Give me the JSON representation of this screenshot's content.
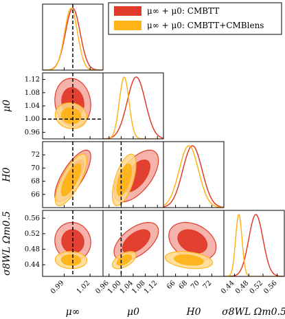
{
  "chart_data": {
    "type": "corner",
    "parameters": [
      {
        "id": "mu_inf",
        "label": "μ∞",
        "range": [
          0.965,
          1.035
        ],
        "ticks": [
          0.99,
          1.02
        ],
        "tick_labels": [
          "0.99",
          "1.02"
        ],
        "fiducial": 1.0
      },
      {
        "id": "mu0",
        "label": "μ0",
        "range": [
          0.94,
          1.14
        ],
        "ticks": [
          0.96,
          1.0,
          1.04,
          1.08,
          1.12
        ],
        "tick_labels": [
          "0.96",
          "1.00",
          "1.04",
          "1.08",
          "1.12"
        ],
        "fiducial": 1.0
      },
      {
        "id": "H0",
        "label": "H0",
        "range": [
          64,
          74
        ],
        "ticks": [
          66,
          68,
          70,
          72
        ],
        "tick_labels": [
          "66",
          "68",
          "70",
          "72"
        ]
      },
      {
        "id": "s8om",
        "label": "σ8WL Ωm0.5",
        "range": [
          0.41,
          0.58
        ],
        "ticks": [
          0.44,
          0.48,
          0.52,
          0.56
        ],
        "tick_labels": [
          "0.44",
          "0.48",
          "0.52",
          "0.56"
        ]
      }
    ],
    "series": [
      {
        "name": "μ∞ + μ0: CMBTT",
        "color": "#e03a2a",
        "fill_outer": "#f3a69d",
        "fill_inner": "#e03a2a",
        "mean": [
          1.0,
          1.05,
          68.8,
          0.5
        ],
        "sigma": [
          0.0085,
          0.03,
          1.6,
          0.02
        ]
      },
      {
        "name": "μ∞ + μ0: CMBTT+CMBlens",
        "color": "#ffb319",
        "fill_outer": "#ffd98c",
        "fill_inner": "#ffb319",
        "mean": [
          0.998,
          1.01,
          68.2,
          0.452
        ],
        "sigma": [
          0.0075,
          0.016,
          1.6,
          0.009
        ]
      }
    ],
    "axis_labels": {
      "x": [
        "μ∞",
        "μ0",
        "H0",
        "σ8WL Ωm0.5"
      ],
      "y": [
        "μ0",
        "H0",
        "σ8WL Ωm0.5"
      ]
    },
    "legend_position": "top-right",
    "reference_lines": {
      "mu_inf": 1.0,
      "mu0": 1.0
    }
  },
  "legend": {
    "entry_1": "μ∞ + μ0:  CMBTT",
    "entry_2": "μ∞ + μ0:  CMBTT+CMBlens"
  }
}
